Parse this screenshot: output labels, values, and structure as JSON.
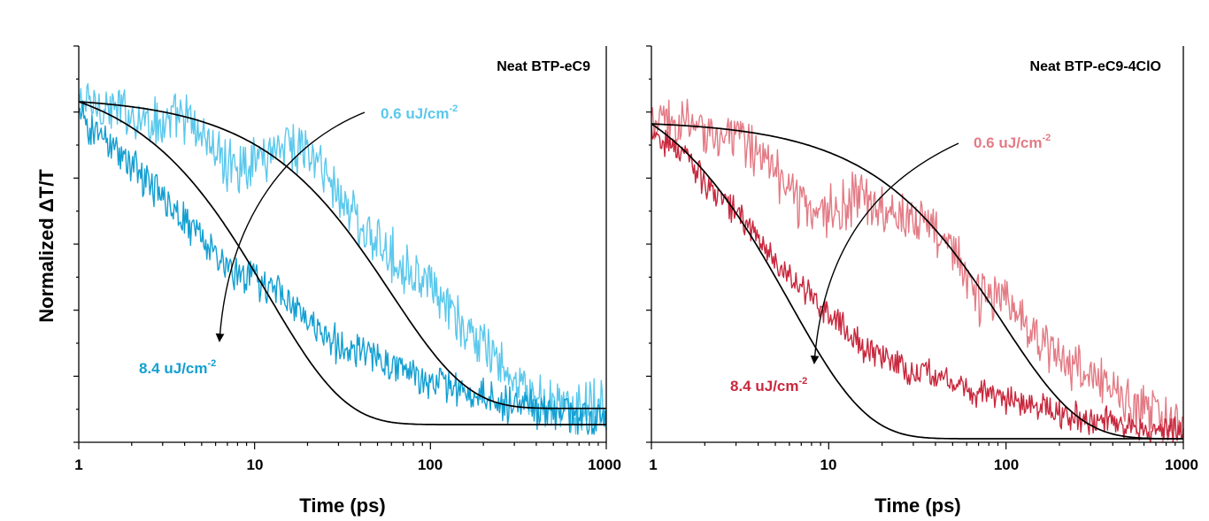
{
  "chart_data": [
    {
      "type": "line",
      "title": "Neat BTP-eC9",
      "xlabel": "Time (ps)",
      "ylabel": "Normalized ΔT/T",
      "xscale": "log",
      "xlim": [
        1,
        1000
      ],
      "ylim": [
        0,
        1
      ],
      "xticks": [
        "1",
        "10",
        "100",
        "1000"
      ],
      "arrow_direction": "increasing fluence",
      "series": [
        {
          "name": "0.6 uJ/cm",
          "exponent": "-2",
          "color": "#5bc8ec",
          "tau": 60,
          "noise": 0.07,
          "x": [
            1,
            1.5,
            2,
            3,
            4,
            5,
            7,
            10,
            15,
            20,
            30,
            50,
            70,
            100,
            150,
            200,
            300,
            500,
            700,
            1000
          ],
          "y": [
            1.0,
            0.98,
            0.96,
            0.93,
            0.95,
            0.9,
            0.8,
            0.82,
            0.88,
            0.85,
            0.72,
            0.55,
            0.5,
            0.42,
            0.3,
            0.25,
            0.12,
            0.05,
            0.05,
            0.06
          ]
        },
        {
          "name": "8.4 uJ/cm",
          "exponent": "-2",
          "color": "#139fd2",
          "tau": 13,
          "noise": 0.05,
          "x": [
            1,
            1.5,
            2,
            3,
            4,
            5,
            7,
            10,
            15,
            20,
            30,
            50,
            70,
            100,
            150,
            200,
            300,
            500,
            700,
            1000
          ],
          "y": [
            0.95,
            0.88,
            0.8,
            0.7,
            0.64,
            0.58,
            0.48,
            0.45,
            0.4,
            0.32,
            0.25,
            0.2,
            0.17,
            0.14,
            0.1,
            0.08,
            0.06,
            0.04,
            0.03,
            0.02
          ]
        }
      ],
      "fits": [
        {
          "tau": 60,
          "offset": 0.05
        },
        {
          "tau": 12,
          "offset": 0.0
        }
      ]
    },
    {
      "type": "line",
      "title": "Neat BTP-eC9-4ClO",
      "xlabel": "Time (ps)",
      "ylabel": "",
      "xscale": "log",
      "xlim": [
        1,
        1000
      ],
      "ylim": [
        0,
        1
      ],
      "xticks": [
        "1",
        "10",
        "100",
        "1000"
      ],
      "arrow_direction": "increasing fluence",
      "series": [
        {
          "name": "0.6 uJ/cm",
          "exponent": "-2",
          "color": "#e37b85",
          "tau": 95,
          "noise": 0.07,
          "x": [
            1,
            1.5,
            2,
            3,
            4,
            5,
            7,
            10,
            15,
            20,
            30,
            50,
            70,
            100,
            150,
            200,
            300,
            500,
            700,
            1000
          ],
          "y": [
            1.0,
            1.0,
            0.98,
            0.95,
            0.92,
            0.85,
            0.75,
            0.72,
            0.76,
            0.74,
            0.72,
            0.6,
            0.45,
            0.45,
            0.32,
            0.25,
            0.2,
            0.12,
            0.08,
            0.03
          ]
        },
        {
          "name": "8.4 uJ/cm",
          "exponent": "-2",
          "color": "#c8283d",
          "tau": 7,
          "noise": 0.04,
          "x": [
            1,
            1.5,
            2,
            3,
            4,
            5,
            7,
            10,
            15,
            20,
            30,
            50,
            70,
            100,
            150,
            200,
            300,
            500,
            700,
            1000
          ],
          "y": [
            0.98,
            0.9,
            0.82,
            0.72,
            0.64,
            0.56,
            0.48,
            0.4,
            0.3,
            0.26,
            0.22,
            0.18,
            0.15,
            0.12,
            0.1,
            0.08,
            0.06,
            0.04,
            0.03,
            0.02
          ]
        }
      ],
      "fits": [
        {
          "tau": 95,
          "offset": 0.0
        },
        {
          "tau": 6,
          "offset": 0.0
        }
      ]
    }
  ]
}
